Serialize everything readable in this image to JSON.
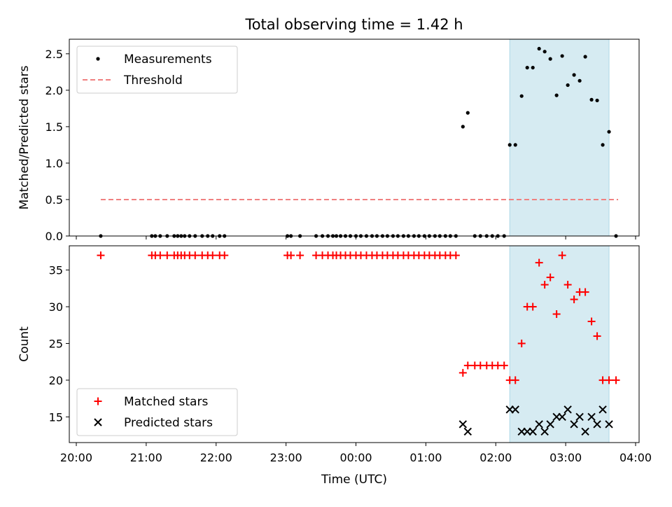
{
  "figure": {
    "title": "Total observing time = 1.42 h"
  },
  "colors": {
    "threshold": "#f08080",
    "shade": "#add8e6",
    "matched": "#ff0000",
    "predicted": "#000000",
    "measure": "#000000"
  },
  "chart_data": [
    {
      "type": "scatter",
      "ylabel": "Matched/Predicted stars",
      "ylim": [
        0,
        2.7
      ],
      "xlim": [
        -0.1,
        8.05
      ],
      "yticks": [
        "0.0",
        "0.5",
        "1.0",
        "1.5",
        "2.0",
        "2.5"
      ],
      "yticks_values": [
        0,
        0.5,
        1.0,
        1.5,
        2.0,
        2.5
      ],
      "legend": {
        "placement": "upper-left",
        "entries": [
          "Measurements",
          "Threshold"
        ]
      },
      "threshold": {
        "value": 0.5,
        "x_range": [
          0.35,
          7.75
        ]
      },
      "shaded_span": [
        6.2,
        7.62
      ],
      "series": [
        {
          "name": "Measurements",
          "points": [
            [
              0.35,
              0
            ],
            [
              1.08,
              0
            ],
            [
              1.13,
              0
            ],
            [
              1.2,
              0
            ],
            [
              1.3,
              0
            ],
            [
              1.4,
              0
            ],
            [
              1.45,
              0
            ],
            [
              1.5,
              0
            ],
            [
              1.55,
              0
            ],
            [
              1.62,
              0
            ],
            [
              1.7,
              0
            ],
            [
              1.8,
              0
            ],
            [
              1.88,
              0
            ],
            [
              1.95,
              0
            ],
            [
              2.05,
              0
            ],
            [
              2.12,
              0
            ],
            [
              3.02,
              0
            ],
            [
              3.07,
              0
            ],
            [
              3.2,
              0
            ],
            [
              3.43,
              0
            ],
            [
              3.52,
              0
            ],
            [
              3.6,
              0
            ],
            [
              3.67,
              0
            ],
            [
              3.72,
              0
            ],
            [
              3.78,
              0
            ],
            [
              3.85,
              0
            ],
            [
              3.92,
              0
            ],
            [
              4.0,
              0
            ],
            [
              4.07,
              0
            ],
            [
              4.15,
              0
            ],
            [
              4.23,
              0
            ],
            [
              4.3,
              0
            ],
            [
              4.38,
              0
            ],
            [
              4.45,
              0
            ],
            [
              4.53,
              0
            ],
            [
              4.6,
              0
            ],
            [
              4.68,
              0
            ],
            [
              4.75,
              0
            ],
            [
              4.83,
              0
            ],
            [
              4.9,
              0
            ],
            [
              4.98,
              0
            ],
            [
              5.05,
              0
            ],
            [
              5.13,
              0
            ],
            [
              5.2,
              0
            ],
            [
              5.28,
              0
            ],
            [
              5.35,
              0
            ],
            [
              5.43,
              0
            ],
            [
              5.53,
              1.5
            ],
            [
              5.6,
              1.69
            ],
            [
              5.7,
              0
            ],
            [
              5.78,
              0
            ],
            [
              5.87,
              0
            ],
            [
              5.95,
              0
            ],
            [
              6.03,
              0
            ],
            [
              6.12,
              0
            ],
            [
              6.2,
              1.25
            ],
            [
              6.28,
              1.25
            ],
            [
              6.37,
              1.92
            ],
            [
              6.45,
              2.31
            ],
            [
              6.53,
              2.31
            ],
            [
              6.62,
              2.57
            ],
            [
              6.7,
              2.53
            ],
            [
              6.78,
              2.43
            ],
            [
              6.87,
              1.93
            ],
            [
              6.95,
              2.47
            ],
            [
              7.03,
              2.07
            ],
            [
              7.12,
              2.21
            ],
            [
              7.2,
              2.13
            ],
            [
              7.28,
              2.46
            ],
            [
              7.37,
              1.87
            ],
            [
              7.45,
              1.86
            ],
            [
              7.53,
              1.25
            ],
            [
              7.62,
              1.43
            ],
            [
              7.72,
              0
            ]
          ]
        }
      ]
    },
    {
      "type": "scatter",
      "ylabel": "Count",
      "xlabel": "Time (UTC)",
      "ylim": [
        11.5,
        38.3
      ],
      "xlim": [
        -0.1,
        8.05
      ],
      "yticks": [
        "15",
        "20",
        "25",
        "30",
        "35"
      ],
      "yticks_values": [
        15,
        20,
        25,
        30,
        35
      ],
      "xticks": [
        "20:00",
        "21:00",
        "22:00",
        "23:00",
        "00:00",
        "01:00",
        "02:00",
        "03:00",
        "04:00"
      ],
      "xticks_values": [
        0,
        1,
        2,
        3,
        4,
        5,
        6,
        7,
        8
      ],
      "legend": {
        "placement": "lower-left",
        "entries": [
          "Matched stars",
          "Predicted stars"
        ]
      },
      "shaded_span": [
        6.2,
        7.62
      ],
      "series": [
        {
          "name": "Matched stars",
          "points": [
            [
              0.35,
              37
            ],
            [
              1.08,
              37
            ],
            [
              1.13,
              37
            ],
            [
              1.2,
              37
            ],
            [
              1.3,
              37
            ],
            [
              1.4,
              37
            ],
            [
              1.45,
              37
            ],
            [
              1.5,
              37
            ],
            [
              1.55,
              37
            ],
            [
              1.62,
              37
            ],
            [
              1.7,
              37
            ],
            [
              1.8,
              37
            ],
            [
              1.88,
              37
            ],
            [
              1.95,
              37
            ],
            [
              2.05,
              37
            ],
            [
              2.12,
              37
            ],
            [
              3.02,
              37
            ],
            [
              3.07,
              37
            ],
            [
              3.2,
              37
            ],
            [
              3.43,
              37
            ],
            [
              3.52,
              37
            ],
            [
              3.6,
              37
            ],
            [
              3.67,
              37
            ],
            [
              3.72,
              37
            ],
            [
              3.78,
              37
            ],
            [
              3.85,
              37
            ],
            [
              3.92,
              37
            ],
            [
              4.0,
              37
            ],
            [
              4.07,
              37
            ],
            [
              4.15,
              37
            ],
            [
              4.23,
              37
            ],
            [
              4.3,
              37
            ],
            [
              4.38,
              37
            ],
            [
              4.45,
              37
            ],
            [
              4.53,
              37
            ],
            [
              4.6,
              37
            ],
            [
              4.68,
              37
            ],
            [
              4.75,
              37
            ],
            [
              4.83,
              37
            ],
            [
              4.9,
              37
            ],
            [
              4.98,
              37
            ],
            [
              5.05,
              37
            ],
            [
              5.13,
              37
            ],
            [
              5.2,
              37
            ],
            [
              5.28,
              37
            ],
            [
              5.35,
              37
            ],
            [
              5.43,
              37
            ],
            [
              5.53,
              21
            ],
            [
              5.6,
              22
            ],
            [
              5.7,
              22
            ],
            [
              5.78,
              22
            ],
            [
              5.87,
              22
            ],
            [
              5.95,
              22
            ],
            [
              6.03,
              22
            ],
            [
              6.12,
              22
            ],
            [
              6.2,
              20
            ],
            [
              6.28,
              20
            ],
            [
              6.37,
              25
            ],
            [
              6.45,
              30
            ],
            [
              6.53,
              30
            ],
            [
              6.62,
              36
            ],
            [
              6.7,
              33
            ],
            [
              6.78,
              34
            ],
            [
              6.87,
              29
            ],
            [
              6.95,
              37
            ],
            [
              7.03,
              33
            ],
            [
              7.12,
              31
            ],
            [
              7.2,
              32
            ],
            [
              7.28,
              32
            ],
            [
              7.37,
              28
            ],
            [
              7.45,
              26
            ],
            [
              7.53,
              20
            ],
            [
              7.62,
              20
            ],
            [
              7.72,
              20
            ]
          ]
        },
        {
          "name": "Predicted stars",
          "points": [
            [
              5.53,
              14
            ],
            [
              5.6,
              13
            ],
            [
              6.2,
              16
            ],
            [
              6.28,
              16
            ],
            [
              6.37,
              13
            ],
            [
              6.45,
              13
            ],
            [
              6.53,
              13
            ],
            [
              6.62,
              14
            ],
            [
              6.7,
              13
            ],
            [
              6.78,
              14
            ],
            [
              6.87,
              15
            ],
            [
              6.95,
              15
            ],
            [
              7.03,
              16
            ],
            [
              7.12,
              14
            ],
            [
              7.2,
              15
            ],
            [
              7.28,
              13
            ],
            [
              7.37,
              15
            ],
            [
              7.45,
              14
            ],
            [
              7.53,
              16
            ],
            [
              7.62,
              14
            ]
          ]
        }
      ]
    }
  ]
}
